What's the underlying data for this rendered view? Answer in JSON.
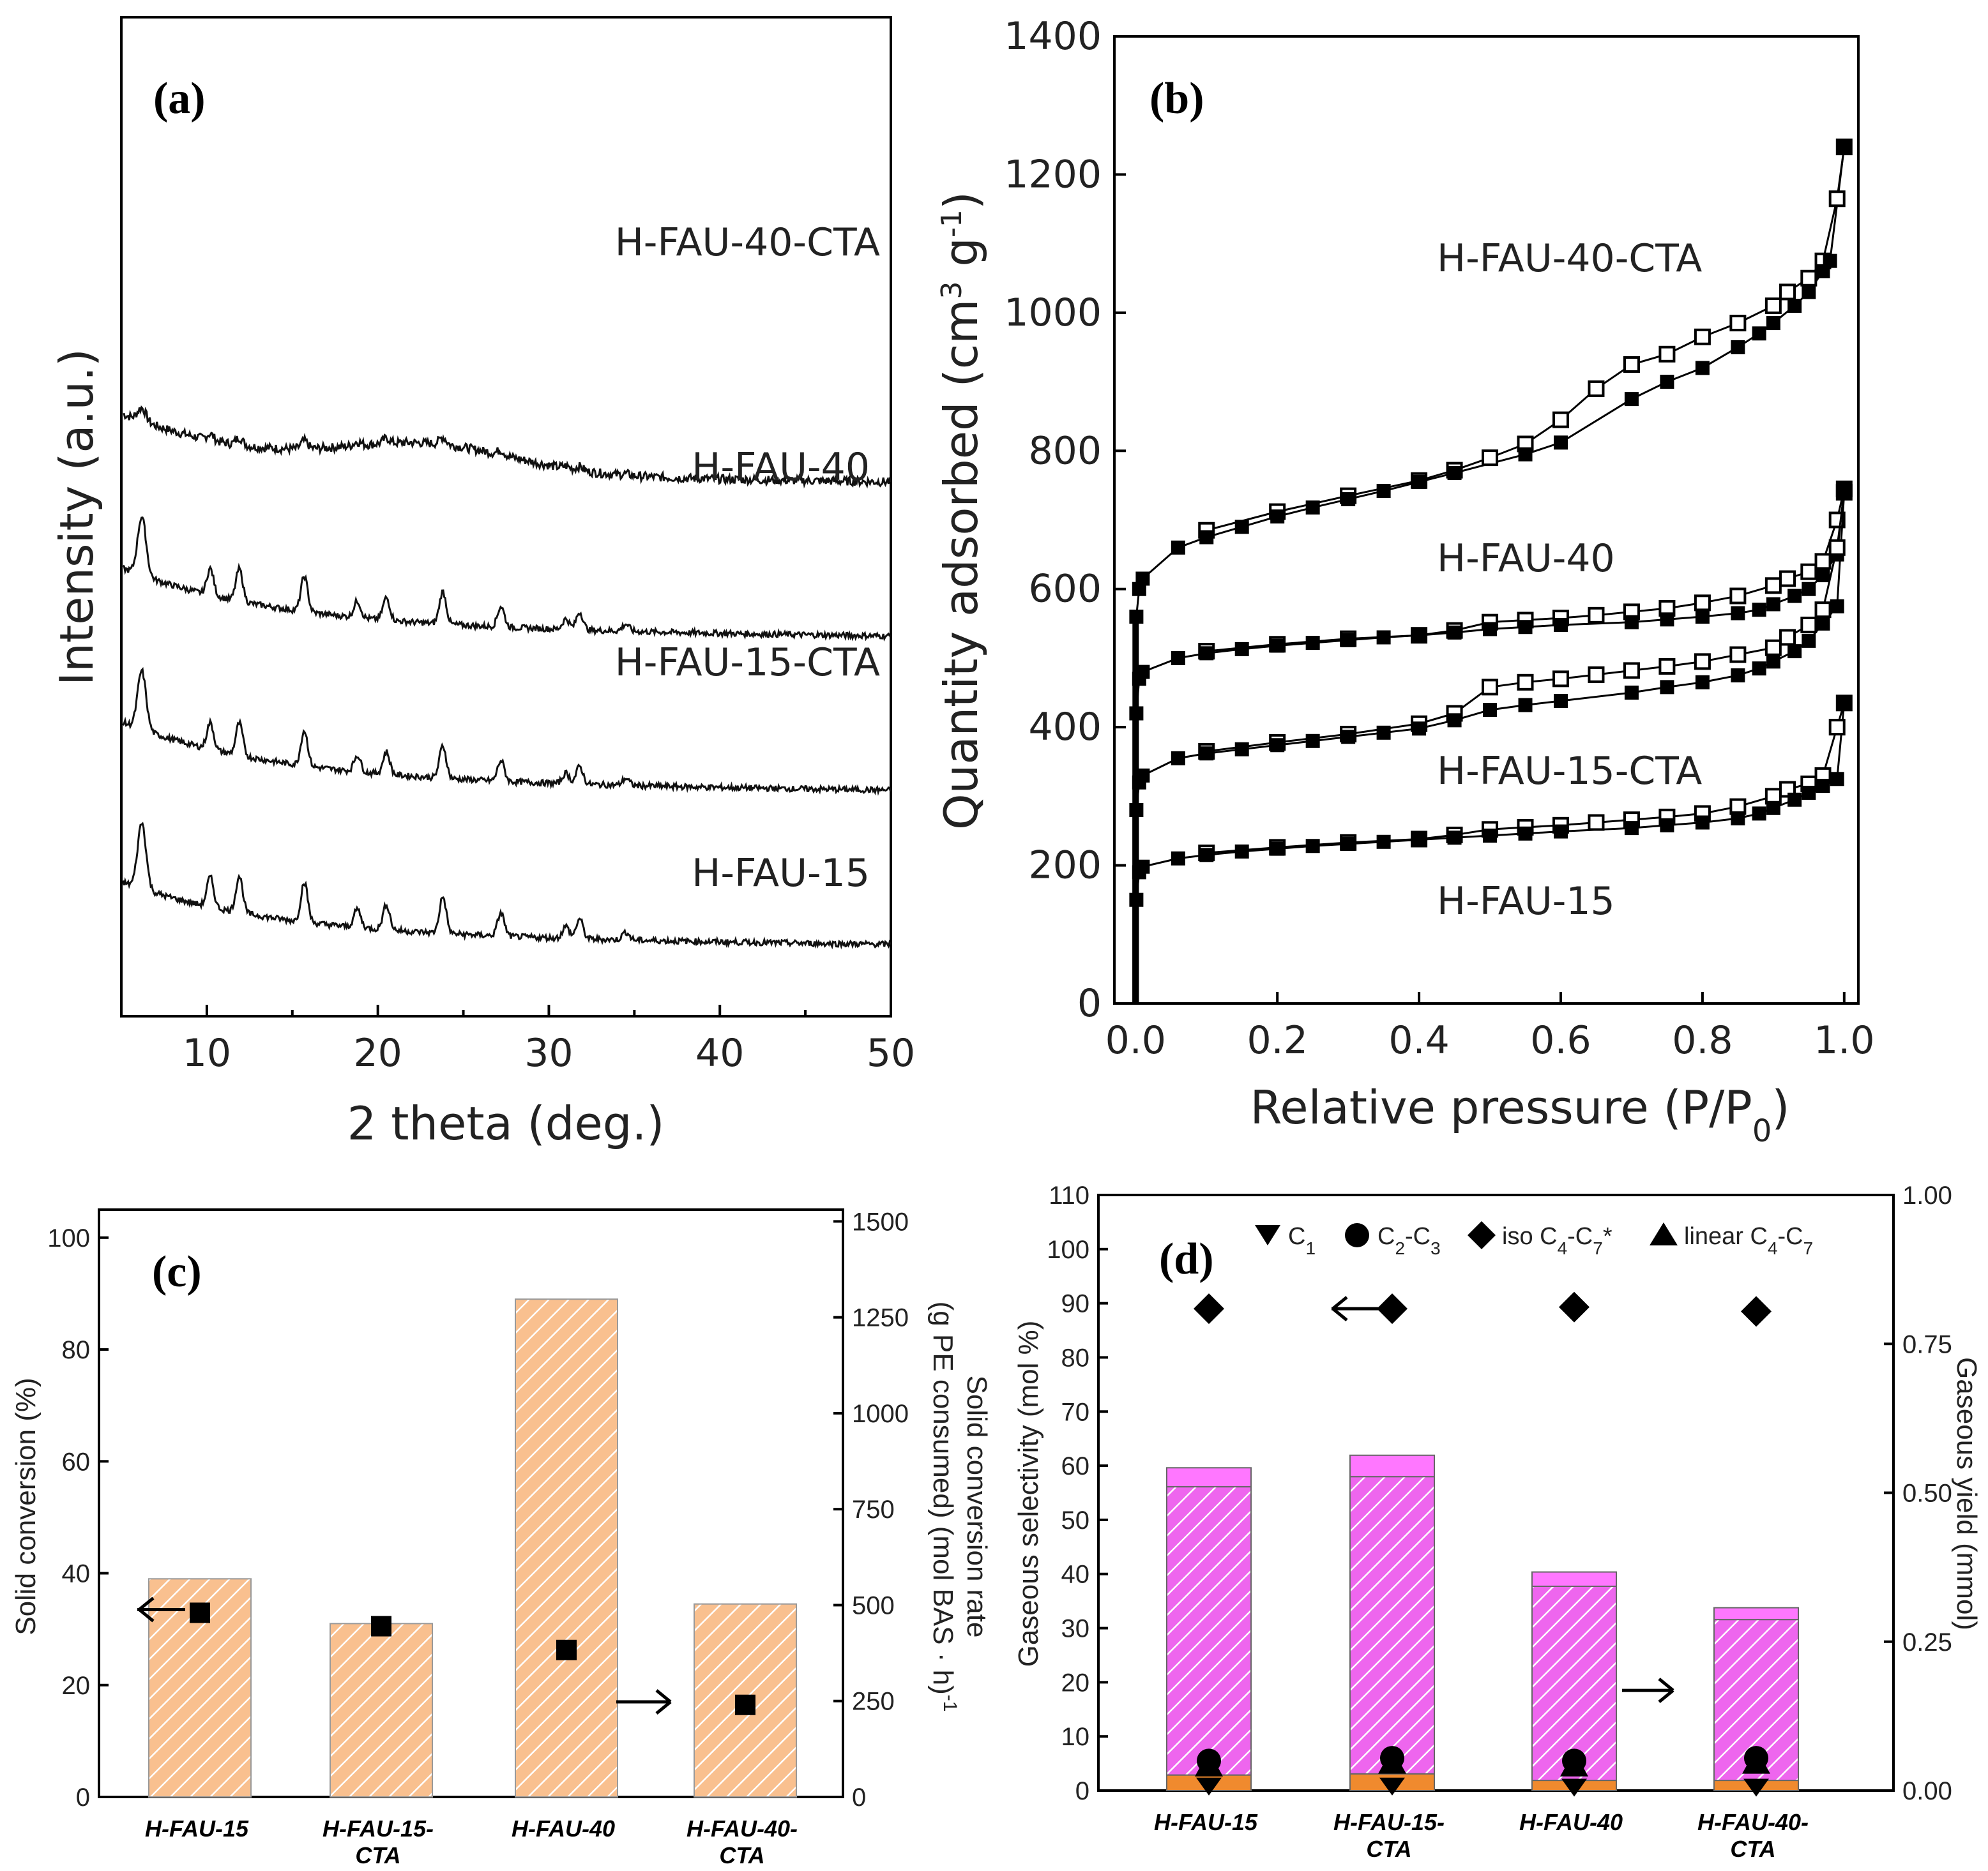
{
  "chart_data": [
    {
      "panel": "(a)",
      "type": "line",
      "xlabel": "2 theta (deg.)",
      "ylabel": "Intensity (a.u.)",
      "xlim": [
        5,
        50
      ],
      "xticks": [
        10,
        20,
        30,
        40,
        50
      ],
      "peaks_deg": [
        6.2,
        10.2,
        11.9,
        15.7,
        18.8,
        20.5,
        23.8,
        27.2,
        31.0,
        31.8,
        34.5
      ],
      "series": [
        {
          "name": "H-FAU-40-CTA",
          "baseline": 0.68,
          "start": 0.76,
          "end": 0.63,
          "peak_scale": 0.18,
          "amorphous": true
        },
        {
          "name": "H-FAU-40",
          "baseline": 0.47,
          "start": 0.55,
          "end": 0.42,
          "peak_scale": 0.8,
          "amorphous": false
        },
        {
          "name": "H-FAU-15-CTA",
          "baseline": 0.26,
          "start": 0.34,
          "end": 0.21,
          "peak_scale": 0.8,
          "amorphous": false
        },
        {
          "name": "H-FAU-15",
          "baseline": 0.045,
          "start": 0.12,
          "end": 0.0,
          "peak_scale": 0.9,
          "amorphous": false
        }
      ]
    },
    {
      "panel": "(b)",
      "type": "scatter",
      "xlabel": "Relative pressure (P/P",
      "xlabel_sub": "0",
      "xlabel_end": ")",
      "ylabel": "Quantity adsorbed (cm",
      "ylabel_sup1": "3",
      "ylabel_mid": " g",
      "ylabel_sup2": "-1",
      "ylabel_end": ")",
      "xlim": [
        -0.03,
        1.02
      ],
      "ylim": [
        0,
        1400
      ],
      "xticks": [
        "0.0",
        "0.2",
        "0.4",
        "0.6",
        "0.8",
        "1.0"
      ],
      "yticks": [
        0,
        200,
        400,
        600,
        800,
        1000,
        1200,
        1400
      ],
      "series": [
        {
          "name": "H-FAU-40-CTA",
          "adsorption": [
            [
              0.001,
              560
            ],
            [
              0.005,
              600
            ],
            [
              0.01,
              615
            ],
            [
              0.06,
              660
            ],
            [
              0.1,
              675
            ],
            [
              0.15,
              690
            ],
            [
              0.2,
              705
            ],
            [
              0.25,
              718
            ],
            [
              0.3,
              730
            ],
            [
              0.35,
              742
            ],
            [
              0.4,
              755
            ],
            [
              0.45,
              768
            ],
            [
              0.55,
              795
            ],
            [
              0.6,
              812
            ],
            [
              0.7,
              875
            ],
            [
              0.75,
              900
            ],
            [
              0.8,
              920
            ],
            [
              0.85,
              950
            ],
            [
              0.88,
              970
            ],
            [
              0.9,
              985
            ],
            [
              0.93,
              1010
            ],
            [
              0.95,
              1030
            ],
            [
              0.97,
              1060
            ],
            [
              0.98,
              1075
            ],
            [
              1.0,
              1240
            ]
          ],
          "desorption": [
            [
              1.0,
              1240
            ],
            [
              0.99,
              1165
            ],
            [
              0.97,
              1075
            ],
            [
              0.95,
              1050
            ],
            [
              0.92,
              1030
            ],
            [
              0.9,
              1010
            ],
            [
              0.85,
              985
            ],
            [
              0.8,
              965
            ],
            [
              0.75,
              940
            ],
            [
              0.7,
              925
            ],
            [
              0.65,
              890
            ],
            [
              0.6,
              845
            ],
            [
              0.55,
              810
            ],
            [
              0.5,
              790
            ],
            [
              0.45,
              772
            ],
            [
              0.4,
              757
            ],
            [
              0.3,
              735
            ],
            [
              0.2,
              712
            ],
            [
              0.1,
              685
            ]
          ]
        },
        {
          "name": "H-FAU-40",
          "adsorption": [
            [
              0.001,
              420
            ],
            [
              0.005,
              470
            ],
            [
              0.01,
              480
            ],
            [
              0.06,
              500
            ],
            [
              0.1,
              507
            ],
            [
              0.15,
              513
            ],
            [
              0.2,
              518
            ],
            [
              0.25,
              522
            ],
            [
              0.3,
              526
            ],
            [
              0.35,
              530
            ],
            [
              0.4,
              533
            ],
            [
              0.45,
              537
            ],
            [
              0.5,
              542
            ],
            [
              0.55,
              545
            ],
            [
              0.6,
              548
            ],
            [
              0.7,
              552
            ],
            [
              0.75,
              556
            ],
            [
              0.8,
              560
            ],
            [
              0.85,
              565
            ],
            [
              0.88,
              570
            ],
            [
              0.9,
              578
            ],
            [
              0.93,
              590
            ],
            [
              0.95,
              600
            ],
            [
              0.97,
              620
            ],
            [
              0.99,
              650
            ],
            [
              1.0,
              745
            ]
          ],
          "desorption": [
            [
              1.0,
              745
            ],
            [
              0.99,
              700
            ],
            [
              0.97,
              640
            ],
            [
              0.95,
              625
            ],
            [
              0.92,
              615
            ],
            [
              0.9,
              605
            ],
            [
              0.85,
              590
            ],
            [
              0.8,
              580
            ],
            [
              0.75,
              572
            ],
            [
              0.7,
              567
            ],
            [
              0.65,
              562
            ],
            [
              0.6,
              558
            ],
            [
              0.55,
              555
            ],
            [
              0.5,
              552
            ],
            [
              0.45,
              540
            ],
            [
              0.4,
              533
            ],
            [
              0.3,
              528
            ],
            [
              0.2,
              520
            ],
            [
              0.1,
              510
            ]
          ]
        },
        {
          "name": "H-FAU-15-CTA",
          "adsorption": [
            [
              0.001,
              280
            ],
            [
              0.005,
              320
            ],
            [
              0.01,
              330
            ],
            [
              0.06,
              355
            ],
            [
              0.1,
              362
            ],
            [
              0.15,
              368
            ],
            [
              0.2,
              374
            ],
            [
              0.25,
              380
            ],
            [
              0.3,
              386
            ],
            [
              0.35,
              392
            ],
            [
              0.4,
              398
            ],
            [
              0.45,
              410
            ],
            [
              0.5,
              425
            ],
            [
              0.55,
              432
            ],
            [
              0.6,
              438
            ],
            [
              0.7,
              450
            ],
            [
              0.75,
              458
            ],
            [
              0.8,
              465
            ],
            [
              0.85,
              475
            ],
            [
              0.88,
              485
            ],
            [
              0.9,
              495
            ],
            [
              0.93,
              510
            ],
            [
              0.95,
              525
            ],
            [
              0.97,
              550
            ],
            [
              0.99,
              575
            ],
            [
              1.0,
              740
            ]
          ],
          "desorption": [
            [
              1.0,
              740
            ],
            [
              0.99,
              660
            ],
            [
              0.97,
              570
            ],
            [
              0.95,
              548
            ],
            [
              0.92,
              530
            ],
            [
              0.9,
              515
            ],
            [
              0.85,
              505
            ],
            [
              0.8,
              495
            ],
            [
              0.75,
              488
            ],
            [
              0.7,
              482
            ],
            [
              0.65,
              476
            ],
            [
              0.6,
              470
            ],
            [
              0.55,
              465
            ],
            [
              0.5,
              458
            ],
            [
              0.45,
              420
            ],
            [
              0.4,
              405
            ],
            [
              0.3,
              390
            ],
            [
              0.2,
              378
            ],
            [
              0.1,
              365
            ]
          ]
        },
        {
          "name": "H-FAU-15",
          "adsorption": [
            [
              0.001,
              150
            ],
            [
              0.005,
              190
            ],
            [
              0.01,
              198
            ],
            [
              0.06,
              210
            ],
            [
              0.1,
              215
            ],
            [
              0.15,
              220
            ],
            [
              0.2,
              224
            ],
            [
              0.25,
              228
            ],
            [
              0.3,
              231
            ],
            [
              0.35,
              234
            ],
            [
              0.4,
              237
            ],
            [
              0.45,
              240
            ],
            [
              0.5,
              243
            ],
            [
              0.55,
              246
            ],
            [
              0.6,
              249
            ],
            [
              0.7,
              254
            ],
            [
              0.75,
              258
            ],
            [
              0.8,
              262
            ],
            [
              0.85,
              268
            ],
            [
              0.88,
              275
            ],
            [
              0.9,
              283
            ],
            [
              0.93,
              295
            ],
            [
              0.95,
              305
            ],
            [
              0.97,
              315
            ],
            [
              0.99,
              325
            ],
            [
              1.0,
              435
            ]
          ],
          "desorption": [
            [
              1.0,
              435
            ],
            [
              0.99,
              400
            ],
            [
              0.97,
              330
            ],
            [
              0.95,
              318
            ],
            [
              0.92,
              310
            ],
            [
              0.9,
              300
            ],
            [
              0.85,
              285
            ],
            [
              0.8,
              275
            ],
            [
              0.75,
              270
            ],
            [
              0.7,
              266
            ],
            [
              0.65,
              262
            ],
            [
              0.6,
              258
            ],
            [
              0.55,
              255
            ],
            [
              0.5,
              252
            ],
            [
              0.45,
              244
            ],
            [
              0.4,
              238
            ],
            [
              0.3,
              233
            ],
            [
              0.2,
              226
            ],
            [
              0.1,
              218
            ]
          ]
        }
      ]
    },
    {
      "panel": "(c)",
      "type": "bar",
      "categories": [
        "H-FAU-15",
        "H-FAU-15-CTA",
        "H-FAU-40",
        "H-FAU-40-CTA"
      ],
      "category_lines": [
        [
          "H-FAU-15"
        ],
        [
          "H-FAU-15-",
          "CTA"
        ],
        [
          "H-FAU-40"
        ],
        [
          "H-FAU-40-",
          "CTA"
        ]
      ],
      "ylabel": "Solid conversion (%)",
      "ylabel_right": "Solid conversion rate",
      "ylabel_right2": "(g PE consumed) (mol BAS · h)",
      "ylabel_right2_sup": "-1",
      "ylim": [
        0,
        105
      ],
      "yticks": [
        0,
        20,
        40,
        60,
        80,
        100
      ],
      "ylim_right": [
        0,
        1500
      ],
      "yticks_right": [
        0,
        250,
        500,
        750,
        1000,
        1250,
        1500
      ],
      "bar_color": "#f9c08f",
      "values": [
        39,
        31,
        89,
        34.5
      ],
      "rate_values": [
        480,
        445,
        383,
        240
      ],
      "arrow_left_at": 33.5,
      "arrow_right_at": 17
    },
    {
      "panel": "(d)",
      "type": "bar",
      "categories": [
        "H-FAU-15",
        "H-FAU-15-CTA",
        "H-FAU-40",
        "H-FAU-40-CTA"
      ],
      "category_lines": [
        [
          "H-FAU-15"
        ],
        [
          "H-FAU-15-",
          "CTA"
        ],
        [
          "H-FAU-40"
        ],
        [
          "H-FAU-40-",
          "CTA"
        ]
      ],
      "ylabel": "Gaseous selectivity (mol %)",
      "ylabel_right": "Gaseous yield (mmol)",
      "ylim": [
        0,
        110
      ],
      "yticks": [
        0,
        10,
        20,
        30,
        40,
        50,
        60,
        70,
        80,
        90,
        100,
        110
      ],
      "ylim_right": [
        0,
        1.0
      ],
      "yticks_right": [
        "0.00",
        "0.25",
        "0.50",
        "0.75",
        "1.00"
      ],
      "yield_orange": [
        0.026,
        0.028,
        0.017,
        0.017
      ],
      "yield_hatched_top": [
        0.51,
        0.527,
        0.343,
        0.287
      ],
      "yield_total": [
        0.542,
        0.563,
        0.367,
        0.307
      ],
      "colors": {
        "orange": "#f08a2e",
        "hatched": "#ee66ee",
        "top": "#ff77ff"
      },
      "legend": [
        {
          "symbol": "down-triangle",
          "label": "C",
          "sub": "1",
          "rest": ""
        },
        {
          "symbol": "circle",
          "label": "C",
          "sub": "2",
          "rest": "-C",
          "sub2": "3"
        },
        {
          "symbol": "diamond",
          "label": "iso C",
          "sub": "4",
          "rest": "-C",
          "sub2": "7",
          "tail": "*"
        },
        {
          "symbol": "up-triangle",
          "label": "linear C",
          "sub": "4",
          "rest": "-C",
          "sub2": "7"
        }
      ],
      "selectivity": {
        "C1": [
          0.5,
          0.5,
          0.3,
          0.3
        ],
        "C2_C3": [
          5.5,
          6,
          5.5,
          6
        ],
        "iso_C4_C7": [
          89,
          89,
          89.3,
          88.5
        ],
        "linear_C4_C7": [
          4.5,
          5,
          4.5,
          5
        ]
      },
      "arrow_left_at": 89,
      "arrow_right_at": 18.5
    }
  ]
}
